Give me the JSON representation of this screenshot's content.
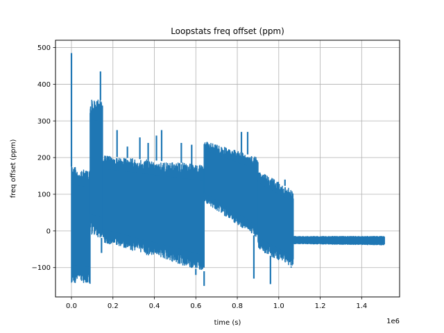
{
  "chart_data": {
    "type": "line",
    "title": "Loopstats freq offset (ppm)",
    "xlabel": "time (s)",
    "ylabel": "freq offset (ppm)",
    "x_offset_text": "1e6",
    "xlim": [
      -0.077,
      1.583
    ],
    "ylim": [
      -180,
      520
    ],
    "grid": true,
    "xticks": [
      0.0,
      0.2,
      0.4,
      0.6,
      0.8,
      1.0,
      1.2,
      1.4
    ],
    "xtick_labels": [
      "0.0",
      "0.2",
      "0.4",
      "0.6",
      "0.8",
      "1.0",
      "1.2",
      "1.4"
    ],
    "yticks": [
      -100,
      0,
      100,
      200,
      300,
      400,
      500
    ],
    "ytick_labels": [
      "−100",
      "0",
      "100",
      "200",
      "300",
      "400",
      "500"
    ],
    "series": [
      {
        "color": "#1f77b4",
        "segments": [
          {
            "x": [
              0.0,
              0.09
            ],
            "top": [
              175,
              165
            ],
            "bottom": [
              -140,
              -145
            ]
          },
          {
            "x": [
              0.09,
              0.15
            ],
            "top": [
              360,
              355
            ],
            "bottom": [
              -10,
              -20
            ]
          },
          {
            "x": [
              0.15,
              0.64
            ],
            "top": [
              205,
              180
            ],
            "bottom": [
              -30,
              -110
            ]
          },
          {
            "x": [
              0.64,
              0.9
            ],
            "top": [
              245,
              200
            ],
            "bottom": [
              80,
              -20
            ]
          },
          {
            "x": [
              0.9,
              1.07
            ],
            "top": [
              165,
              110
            ],
            "bottom": [
              -50,
              -100
            ]
          },
          {
            "x": [
              1.07,
              1.51
            ],
            "top": [
              -15,
              -15
            ],
            "bottom": [
              -35,
              -38
            ]
          }
        ],
        "spikes": [
          {
            "x": 0.0,
            "y": 485
          },
          {
            "x": 0.003,
            "y": -140
          },
          {
            "x": 0.14,
            "y": 435
          },
          {
            "x": 0.145,
            "y": -60
          },
          {
            "x": 0.22,
            "y": 275
          },
          {
            "x": 0.27,
            "y": 230
          },
          {
            "x": 0.33,
            "y": 255
          },
          {
            "x": 0.37,
            "y": 240
          },
          {
            "x": 0.41,
            "y": 260
          },
          {
            "x": 0.435,
            "y": 275
          },
          {
            "x": 0.53,
            "y": 240
          },
          {
            "x": 0.58,
            "y": 235
          },
          {
            "x": 0.6,
            "y": -120
          },
          {
            "x": 0.64,
            "y": -150
          },
          {
            "x": 0.67,
            "y": 240
          },
          {
            "x": 0.82,
            "y": 270
          },
          {
            "x": 0.85,
            "y": 270
          },
          {
            "x": 0.88,
            "y": -130
          },
          {
            "x": 0.96,
            "y": -145
          },
          {
            "x": 1.03,
            "y": 140
          },
          {
            "x": 1.06,
            "y": -100
          }
        ]
      }
    ]
  }
}
